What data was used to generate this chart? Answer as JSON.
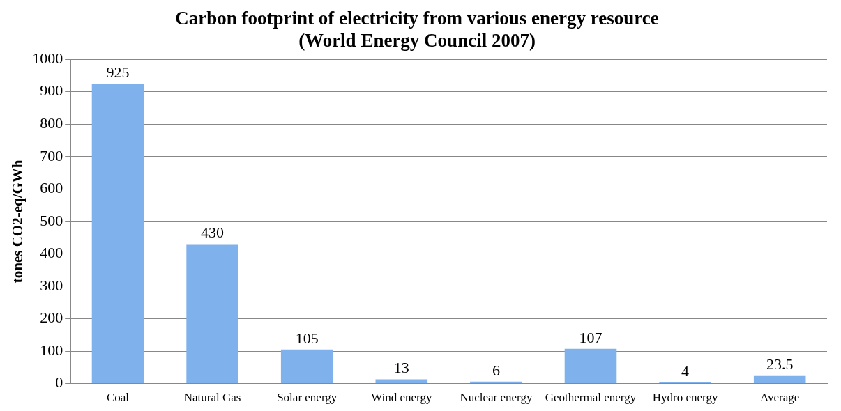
{
  "chart_data": {
    "type": "bar",
    "title": "Carbon footprint of electricity from various energy resource\n(World Energy Council 2007)",
    "ylabel": "tones CO2-eq/GWh",
    "categories": [
      "Coal",
      "Natural Gas",
      "Solar energy",
      "Wind energy",
      "Nuclear energy",
      "Geothermal energy",
      "Hydro energy",
      "Average"
    ],
    "values": [
      925,
      430,
      105,
      13,
      6,
      107,
      4,
      23.5
    ],
    "color": "#7fb2ec",
    "ylim": [
      0,
      1000
    ],
    "yticks": [
      0,
      100,
      200,
      300,
      400,
      500,
      600,
      700,
      800,
      900,
      1000
    ],
    "grid": "y",
    "data_labels": true,
    "legend": false
  }
}
